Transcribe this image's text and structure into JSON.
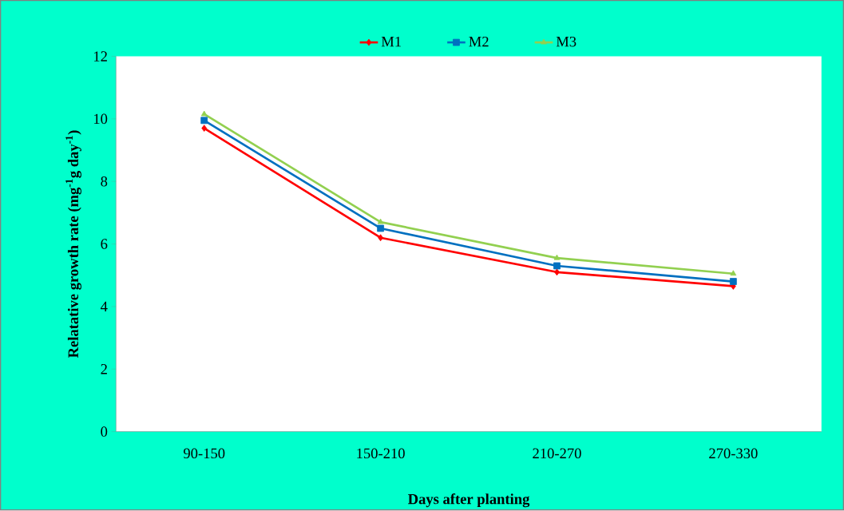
{
  "chart_data": {
    "type": "line",
    "xlabel": "Days after planting",
    "ylabel": "Relatative growth rate (mg$^{-1}$g day$^{-1}$)",
    "categories": [
      "90-150",
      "150-210",
      "210-270",
      "270-330"
    ],
    "series": [
      {
        "name": "M1",
        "color": "#ff0000",
        "marker": "diamond",
        "values": [
          9.7,
          6.2,
          5.1,
          4.65
        ]
      },
      {
        "name": "M2",
        "color": "#0070c0",
        "marker": "square",
        "values": [
          9.95,
          6.5,
          5.3,
          4.8
        ]
      },
      {
        "name": "M3",
        "color": "#92d050",
        "marker": "triangle",
        "values": [
          10.15,
          6.7,
          5.55,
          5.05
        ]
      }
    ],
    "ylim": [
      0,
      12
    ],
    "yticks": [
      0,
      2,
      4,
      6,
      8,
      10,
      12
    ],
    "legend": "top",
    "grid": false,
    "line_style": "solid"
  }
}
